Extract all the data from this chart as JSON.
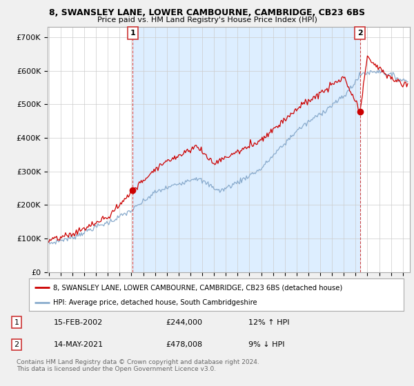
{
  "title_line1": "8, SWANSLEY LANE, LOWER CAMBOURNE, CAMBRIDGE, CB23 6BS",
  "title_line2": "Price paid vs. HM Land Registry's House Price Index (HPI)",
  "ylabel_ticks": [
    "£0",
    "£100K",
    "£200K",
    "£300K",
    "£400K",
    "£500K",
    "£600K",
    "£700K"
  ],
  "ytick_values": [
    0,
    100000,
    200000,
    300000,
    400000,
    500000,
    600000,
    700000
  ],
  "ylim": [
    0,
    730000
  ],
  "xlim_start": 1994.9,
  "xlim_end": 2025.6,
  "red_color": "#cc0000",
  "blue_color": "#88aacc",
  "shade_color": "#ddeeff",
  "background_color": "#f0f0f0",
  "plot_bg_color": "#ffffff",
  "grid_color": "#cccccc",
  "sale1_year": 2002.12,
  "sale1_price": 244000,
  "sale2_year": 2021.37,
  "sale2_price": 478008,
  "legend_label_red": "8, SWANSLEY LANE, LOWER CAMBOURNE, CAMBRIDGE, CB23 6BS (detached house)",
  "legend_label_blue": "HPI: Average price, detached house, South Cambridgeshire",
  "annotation1_label": "1",
  "annotation2_label": "2",
  "table_row1": [
    "1",
    "15-FEB-2002",
    "£244,000",
    "12% ↑ HPI"
  ],
  "table_row2": [
    "2",
    "14-MAY-2021",
    "£478,008",
    "9% ↓ HPI"
  ],
  "footer": "Contains HM Land Registry data © Crown copyright and database right 2024.\nThis data is licensed under the Open Government Licence v3.0.",
  "dashed_line1_year": 2002.12,
  "dashed_line2_year": 2021.37
}
